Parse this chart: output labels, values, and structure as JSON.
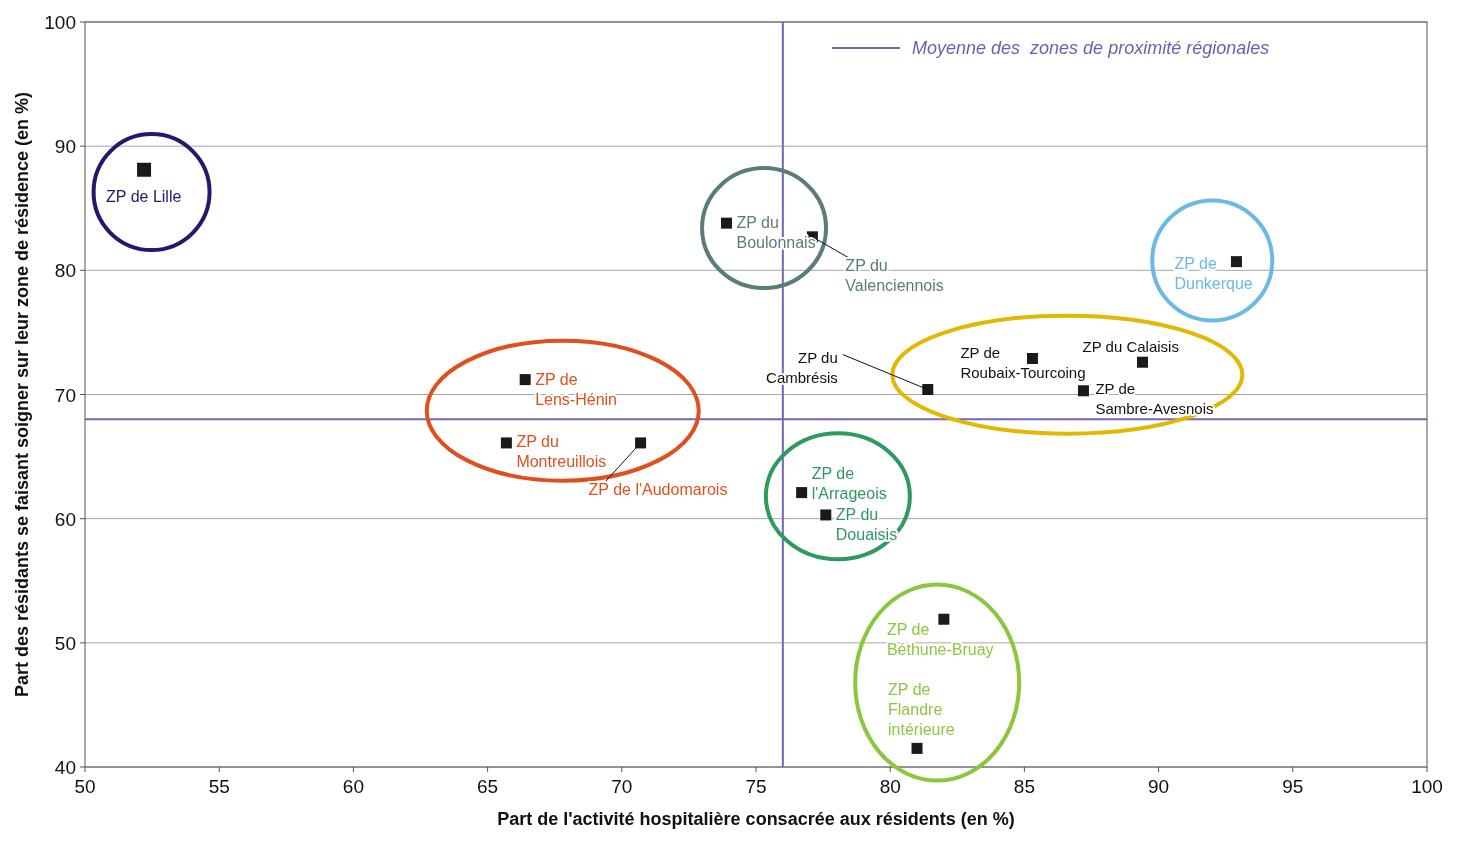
{
  "chart_data": {
    "type": "scatter",
    "xlabel": "Part de l'activité hospitalière consacrée aux résidents (en %)",
    "ylabel": "Part des résidants se faisant soigner sur leur zone de résidence (en %)",
    "xlim": [
      50,
      100
    ],
    "xticks": [
      50,
      55,
      60,
      65,
      70,
      75,
      80,
      85,
      90,
      95,
      100
    ],
    "ylim": [
      40,
      100
    ],
    "yticks": [
      40,
      50,
      60,
      70,
      80,
      90,
      100
    ],
    "grid": "y",
    "marker": "square",
    "legend": "top right",
    "series": [
      {
        "color": "#1a1a1a",
        "x": [
          52.2
        ],
        "values": [
          88.1
        ]
      },
      {
        "color": "#1a1a1a",
        "x": [
          73.9,
          77.1
        ],
        "values": [
          83.8,
          82.7
        ]
      },
      {
        "color": "#1a1a1a",
        "x": [
          92.9
        ],
        "values": [
          80.7
        ]
      },
      {
        "color": "#1a1a1a",
        "x": [
          89.4,
          85.3,
          87.2,
          81.4
        ],
        "values": [
          72.6,
          72.9,
          70.3,
          70.4
        ]
      },
      {
        "color": "#1a1a1a",
        "x": [
          66.4,
          65.7,
          70.7
        ],
        "values": [
          71.2,
          66.1,
          66.1
        ]
      },
      {
        "color": "#1a1a1a",
        "x": [
          76.7,
          77.6
        ],
        "values": [
          62.1,
          60.3
        ]
      },
      {
        "color": "#1a1a1a",
        "x": [
          82.0,
          81.0
        ],
        "values": [
          51.9,
          41.5
        ]
      }
    ],
    "ref_lines": [
      {
        "axis": "x",
        "value": 76,
        "color": "#7466b4",
        "label": "Moyenne des  zones de proximité régionales"
      },
      {
        "axis": "y",
        "value": 68,
        "color": "#7466b4"
      }
    ],
    "annotations": [
      {
        "text": "ZP de Lille",
        "x": 52.2,
        "y": 88.1
      },
      {
        "text": "ZP du Boulonnais",
        "x": 73.9,
        "y": 83.8
      },
      {
        "text": "ZP du Valenciennois",
        "x": 77.1,
        "y": 82.7
      },
      {
        "text": "ZP de Dunkerque",
        "x": 92.9,
        "y": 80.7
      },
      {
        "text": "ZP du Calaisis",
        "x": 89.4,
        "y": 72.6
      },
      {
        "text": "ZP de Roubaix-Tourcoing",
        "x": 85.3,
        "y": 72.9
      },
      {
        "text": "ZP de Sambre-Avesnois",
        "x": 87.2,
        "y": 70.3
      },
      {
        "text": "ZP du Cambrésis",
        "x": 81.4,
        "y": 70.4
      },
      {
        "text": "ZP de Lens-Hénin",
        "x": 66.4,
        "y": 71.2
      },
      {
        "text": "ZP du Montreuillois",
        "x": 65.7,
        "y": 66.1
      },
      {
        "text": "ZP de l'Audomarois",
        "x": 70.7,
        "y": 66.1
      },
      {
        "text": "ZP de l'Arrageois",
        "x": 76.7,
        "y": 62.1
      },
      {
        "text": "ZP du Douaisis",
        "x": 77.6,
        "y": 60.3
      },
      {
        "text": "ZP de Béthune-Bruay",
        "x": 82.0,
        "y": 51.9
      },
      {
        "text": "ZP de Flandre intérieure",
        "x": 81.0,
        "y": 41.5
      }
    ]
  }
}
